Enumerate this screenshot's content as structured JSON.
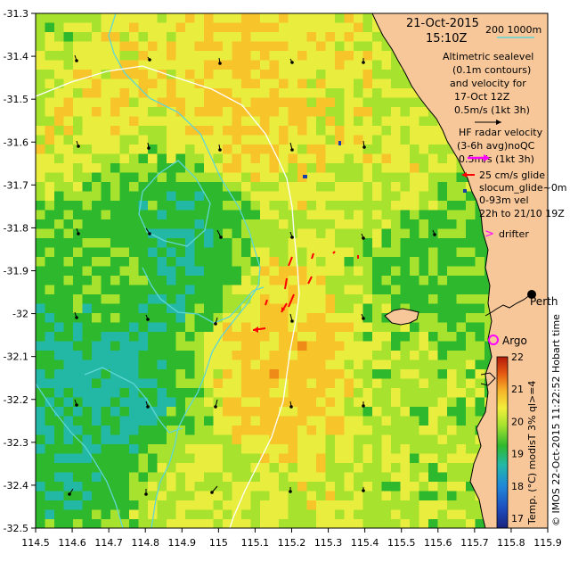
{
  "title": {
    "date": "21-Oct-2015",
    "time": "15:10Z"
  },
  "legend": {
    "isobath_label": "200  1000m",
    "sealevel_lines": [
      "Altimetric sealevel",
      "(0.1m contours)",
      "and velocity for",
      "17-Oct 12Z"
    ],
    "sealevel_scale": "0.5m/s (1kt 3h)",
    "hf_lines": [
      "HF radar velocity",
      "(3-6h avg)noQC"
    ],
    "hf_scale": "0.5m/s (1kt 3h)",
    "glider_scale": "25 cm/s glide",
    "glider_lines": [
      "slocum_glide~0m",
      "0-93m vel",
      "22h to 21/10 19Z"
    ],
    "drifter": "drifter",
    "city": "Perth",
    "argo": "Argo"
  },
  "credit": "© IMOS 22-Oct-2015 11:22:52 Hobart time",
  "colorbar": {
    "label": "Temp. (°C) modisT 3% ql>=4",
    "ticks": [
      "22",
      "21",
      "20",
      "19",
      "18",
      "17"
    ],
    "min": 16.7,
    "max": 22
  },
  "axes": {
    "x_ticks": [
      "114.5",
      "114.6",
      "114.7",
      "114.8",
      "114.9",
      "115",
      "115.1",
      "115.2",
      "115.3",
      "115.4",
      "115.5",
      "115.6",
      "115.7",
      "115.8",
      "115.9"
    ],
    "y_ticks": [
      "-31.3",
      "-31.4",
      "-31.5",
      "-31.6",
      "-31.7",
      "-31.8",
      "-31.9",
      "-32",
      "-32.1",
      "-32.2",
      "-32.3",
      "-32.4",
      "-32.5"
    ],
    "lon_range": [
      114.5,
      115.9
    ],
    "lat_range": [
      -32.5,
      -31.3
    ]
  },
  "colors": {
    "land": "#f7c79a",
    "isobath200": "#5fd6d6",
    "isobath1000": "#ffffff",
    "hf_vector": "#ff00ff",
    "glider_vector": "#ff0000",
    "argo": "#ff00ff",
    "sst_warm": "#f5a623",
    "sst_mid": "#e8f23a",
    "sst_cool": "#3cbf3c",
    "sst_cold": "#1a3fa6"
  },
  "sst_samples": [
    {
      "lon": 114.55,
      "lat": -31.35,
      "value": 20.3
    },
    {
      "lon": 114.65,
      "lat": -31.45,
      "value": 20.8
    },
    {
      "lon": 114.75,
      "lat": -31.85,
      "value": 19.8
    },
    {
      "lon": 114.85,
      "lat": -31.85,
      "value": 19.2
    },
    {
      "lon": 114.7,
      "lat": -32.2,
      "value": 19.0
    },
    {
      "lon": 115.05,
      "lat": -31.5,
      "value": 21.0
    },
    {
      "lon": 115.15,
      "lat": -32.1,
      "value": 21.2
    },
    {
      "lon": 115.45,
      "lat": -31.6,
      "value": 20.5
    },
    {
      "lon": 115.6,
      "lat": -31.9,
      "value": 19.7
    },
    {
      "lon": 115.52,
      "lat": -32.15,
      "value": 20.2
    },
    {
      "lon": 114.9,
      "lat": -32.4,
      "value": 20.4
    }
  ]
}
